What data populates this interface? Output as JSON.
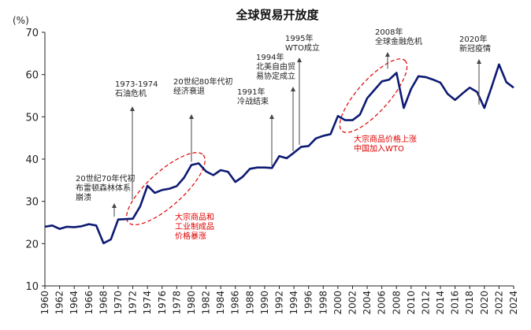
{
  "chart_data": {
    "type": "line",
    "title": "全球贸易开放度",
    "ylabel": "(%)",
    "xlabel": "",
    "ylim": [
      10,
      70
    ],
    "yticks": [
      10,
      20,
      30,
      40,
      50,
      60,
      70
    ],
    "xlim": [
      1960,
      2024
    ],
    "xticks": [
      1960,
      1962,
      1964,
      1966,
      1968,
      1970,
      1972,
      1974,
      1976,
      1978,
      1980,
      1982,
      1984,
      1986,
      1988,
      1990,
      1992,
      1994,
      1996,
      1998,
      2000,
      2002,
      2004,
      2006,
      2008,
      2010,
      2012,
      2014,
      2016,
      2018,
      2020,
      2022,
      2024
    ],
    "line_color": "#0d1a73",
    "grid": false,
    "series": [
      {
        "name": "",
        "x": [
          1960,
          1961,
          1962,
          1963,
          1964,
          1965,
          1966,
          1967,
          1968,
          1969,
          1970,
          1971,
          1972,
          1973,
          1974,
          1975,
          1976,
          1977,
          1978,
          1979,
          1980,
          1981,
          1982,
          1983,
          1984,
          1985,
          1986,
          1987,
          1988,
          1989,
          1990,
          1991,
          1992,
          1993,
          1994,
          1995,
          1996,
          1997,
          1998,
          1999,
          2000,
          2001,
          2002,
          2003,
          2004,
          2005,
          2006,
          2007,
          2008,
          2009,
          2010,
          2011,
          2012,
          2013,
          2014,
          2015,
          2016,
          2017,
          2018,
          2019,
          2020,
          2021,
          2022,
          2023,
          2024
        ],
        "values": [
          24.0,
          24.3,
          23.5,
          24.0,
          23.9,
          24.1,
          24.6,
          24.3,
          20.1,
          21.0,
          25.7,
          25.8,
          25.9,
          28.8,
          33.7,
          32.0,
          32.7,
          33.0,
          33.6,
          35.6,
          38.6,
          39.0,
          37.1,
          36.2,
          37.4,
          37.0,
          34.6,
          35.8,
          37.7,
          38.0,
          38.0,
          37.9,
          40.7,
          40.2,
          41.5,
          42.9,
          43.1,
          44.9,
          45.5,
          45.9,
          50.2,
          49.2,
          49.2,
          50.5,
          54.4,
          56.4,
          58.4,
          58.8,
          60.4,
          52.1,
          56.6,
          59.6,
          59.4,
          58.8,
          58.1,
          55.4,
          54.0,
          55.5,
          56.9,
          55.9,
          52.1,
          57.1,
          62.4,
          58.2,
          56.9
        ]
      }
    ],
    "annotations": [
      {
        "x": 1971.5,
        "y": 26.0,
        "text": [
          "20世纪70年代初",
          "布雷顿森林体系",
          "崩溃"
        ],
        "color": "#222222"
      },
      {
        "x": 1974.0,
        "y": 30.0,
        "text": [
          "1973-1974",
          "石油危机"
        ],
        "color": "#222222"
      },
      {
        "x": 1980.0,
        "y": 39.0,
        "text": [
          "20世纪80年代初",
          "经济衰退"
        ],
        "color": "#222222"
      },
      {
        "x": 1991.0,
        "y": 38.0,
        "text": [
          "1991年",
          "冷战结束"
        ],
        "color": "#222222"
      },
      {
        "x": 1994.0,
        "y": 41.5,
        "text": [
          "1994年",
          "北美自由贸",
          "易协定成立"
        ],
        "color": "#222222"
      },
      {
        "x": 1995.0,
        "y": 43.0,
        "text": [
          "1995年",
          "WTO成立"
        ],
        "color": "#222222"
      },
      {
        "x": 2008.0,
        "y": 61.0,
        "text": [
          "2008年",
          "全球金融危机"
        ],
        "color": "#222222"
      },
      {
        "x": 2020.0,
        "y": 52.5,
        "text": [
          "2020年",
          "新冠疫情"
        ],
        "color": "#222222"
      },
      {
        "text": [
          "大宗商品和",
          "工业制成品",
          "价格暴涨"
        ],
        "color": "#e00000"
      },
      {
        "text": [
          "大宗商品价格上涨",
          "中国加入WTO"
        ],
        "color": "#e00000"
      }
    ]
  }
}
